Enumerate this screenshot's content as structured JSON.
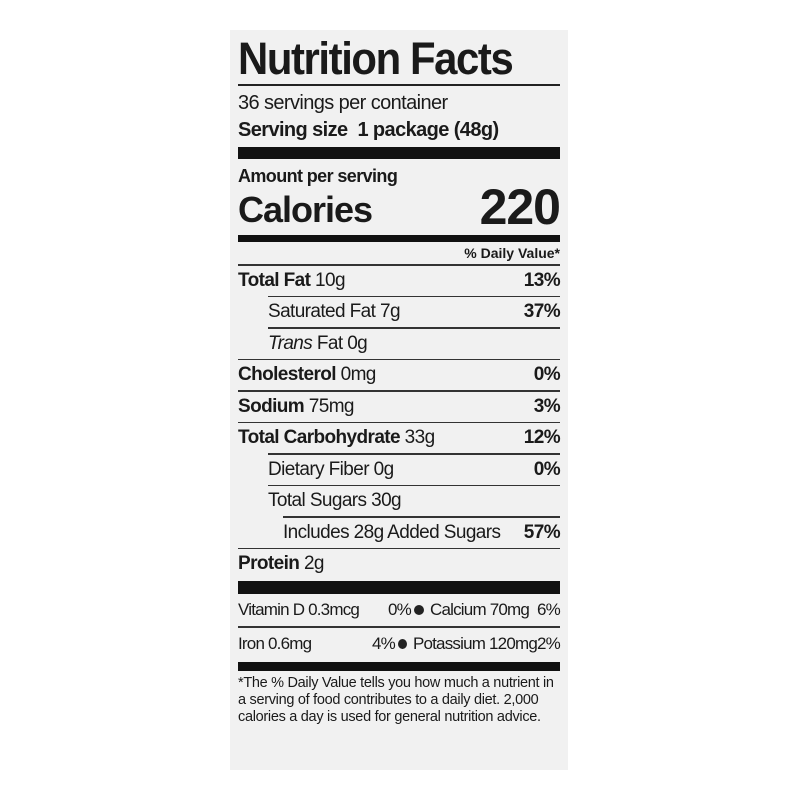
{
  "label": {
    "title": "Nutrition Facts",
    "servings": "36 servings per container",
    "serving_size_label": "Serving size",
    "serving_size_value": "1 package (48g)",
    "amount_per_serving": "Amount per serving",
    "calories_label": "Calories",
    "calories_value": "220",
    "daily_value_header": "% Daily Value*",
    "nutrients": [
      {
        "name": "Total Fat",
        "amount": "10g",
        "dv": "13%"
      },
      {
        "name": "Saturated Fat",
        "amount": "7g",
        "dv": "37%"
      },
      {
        "name": "Trans",
        "name2": "Fat",
        "amount": "0g",
        "dv": ""
      },
      {
        "name": "Cholesterol",
        "amount": "0mg",
        "dv": "0%"
      },
      {
        "name": "Sodium",
        "amount": "75mg",
        "dv": "3%"
      },
      {
        "name": "Total Carbohydrate",
        "amount": "33g",
        "dv": "12%"
      },
      {
        "name": "Dietary Fiber",
        "amount": "0g",
        "dv": "0%"
      },
      {
        "name": "Total Sugars",
        "amount": "30g",
        "dv": ""
      },
      {
        "name": "Includes 28g Added Sugars",
        "amount": "",
        "dv": "57%"
      },
      {
        "name": "Protein",
        "amount": "2g",
        "dv": ""
      }
    ],
    "vitamins": [
      {
        "left": "Vitamin D 0.3mcg",
        "left_dv": "0%",
        "right": "Calcium 70mg",
        "right_dv": "6%"
      },
      {
        "left": "Iron 0.6mg",
        "left_dv": "4%",
        "right": "Potassium 120mg",
        "right_dv": "2%"
      }
    ],
    "footnote": "*The % Daily Value tells you how much a nutrient in a serving of food contributes to a daily diet. 2,000 calories a day is used for general nutrition advice."
  }
}
